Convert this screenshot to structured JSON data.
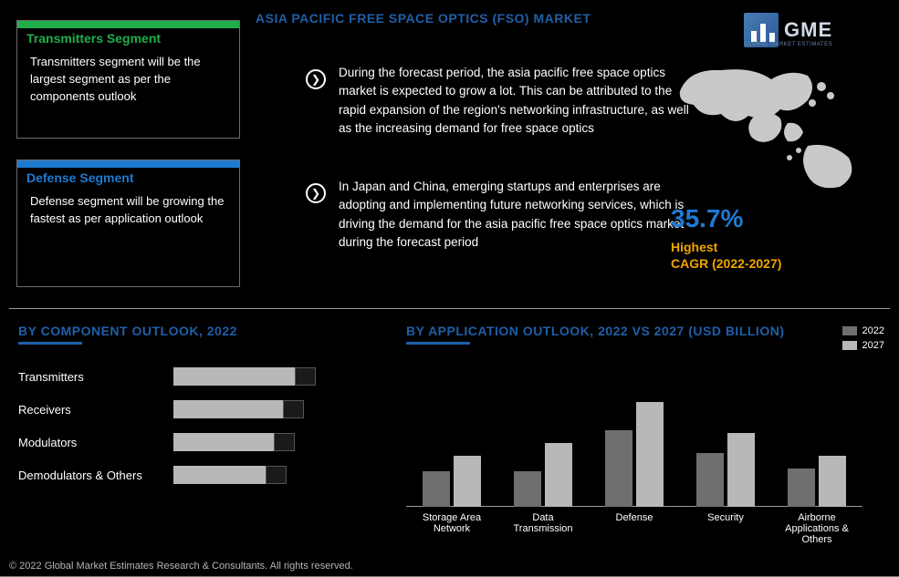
{
  "title": "ASIA PACIFIC FREE SPACE OPTICS (FSO) MARKET",
  "logo": {
    "text": "GME",
    "subtext": "GLOBAL MARKET ESTIMATES"
  },
  "segments": [
    {
      "header": "Transmitters Segment",
      "accent": "#1fae4a",
      "body": "Transmitters segment will be the largest segment as per the components outlook"
    },
    {
      "header": "Defense Segment",
      "accent": "#1f7ad1",
      "body": "Defense segment will be growing the fastest as per application outlook"
    }
  ],
  "bullets": [
    "During the forecast period, the asia pacific free space optics market is expected to grow a lot. This can be attributed to the rapid expansion of the region's networking infrastructure, as well as the increasing demand for free space optics",
    "In Japan and China, emerging startups and enterprises are adopting and implementing future networking services, which is driving the demand for the asia pacific free space optics market during the forecast period"
  ],
  "cagr": {
    "value": "35.7%",
    "label_line1": "Highest",
    "label_line2": "CAGR (2022-2027)"
  },
  "component_chart": {
    "title": "BY COMPONENT OUTLOOK, 2022",
    "title_color": "#1f5fa8",
    "bar_light_color": "#b8b8b8",
    "bar_dark_color": "#1a1a1a",
    "rows": [
      {
        "label": "Transmitters",
        "light_pct": 58,
        "dark_pct": 10
      },
      {
        "label": "Receivers",
        "light_pct": 52,
        "dark_pct": 10
      },
      {
        "label": "Modulators",
        "light_pct": 48,
        "dark_pct": 10
      },
      {
        "label": "Demodulators & Others",
        "light_pct": 44,
        "dark_pct": 10
      }
    ]
  },
  "application_chart": {
    "title": "BY APPLICATION OUTLOOK, 2022 VS 2027 (USD BILLION)",
    "title_color": "#1f5fa8",
    "legend": [
      {
        "label": "2022",
        "color": "#6f6f6f"
      },
      {
        "label": "2027",
        "color": "#b8b8b8"
      }
    ],
    "max": 100,
    "groups": [
      {
        "label": "Storage Area Network",
        "v2022": 28,
        "v2027": 40
      },
      {
        "label": "Data Transmission",
        "v2022": 28,
        "v2027": 50
      },
      {
        "label": "Defense",
        "v2022": 60,
        "v2027": 82
      },
      {
        "label": "Security",
        "v2022": 42,
        "v2027": 58
      },
      {
        "label": "Airborne Applications & Others",
        "v2022": 30,
        "v2027": 40
      }
    ]
  },
  "footer": "© 2022 Global Market Estimates Research & Consultants. All rights reserved.",
  "colors": {
    "background": "#000000",
    "title_blue": "#1f5fa8",
    "accent_orange": "#f0a500",
    "map_fill": "#c9c9c9"
  }
}
